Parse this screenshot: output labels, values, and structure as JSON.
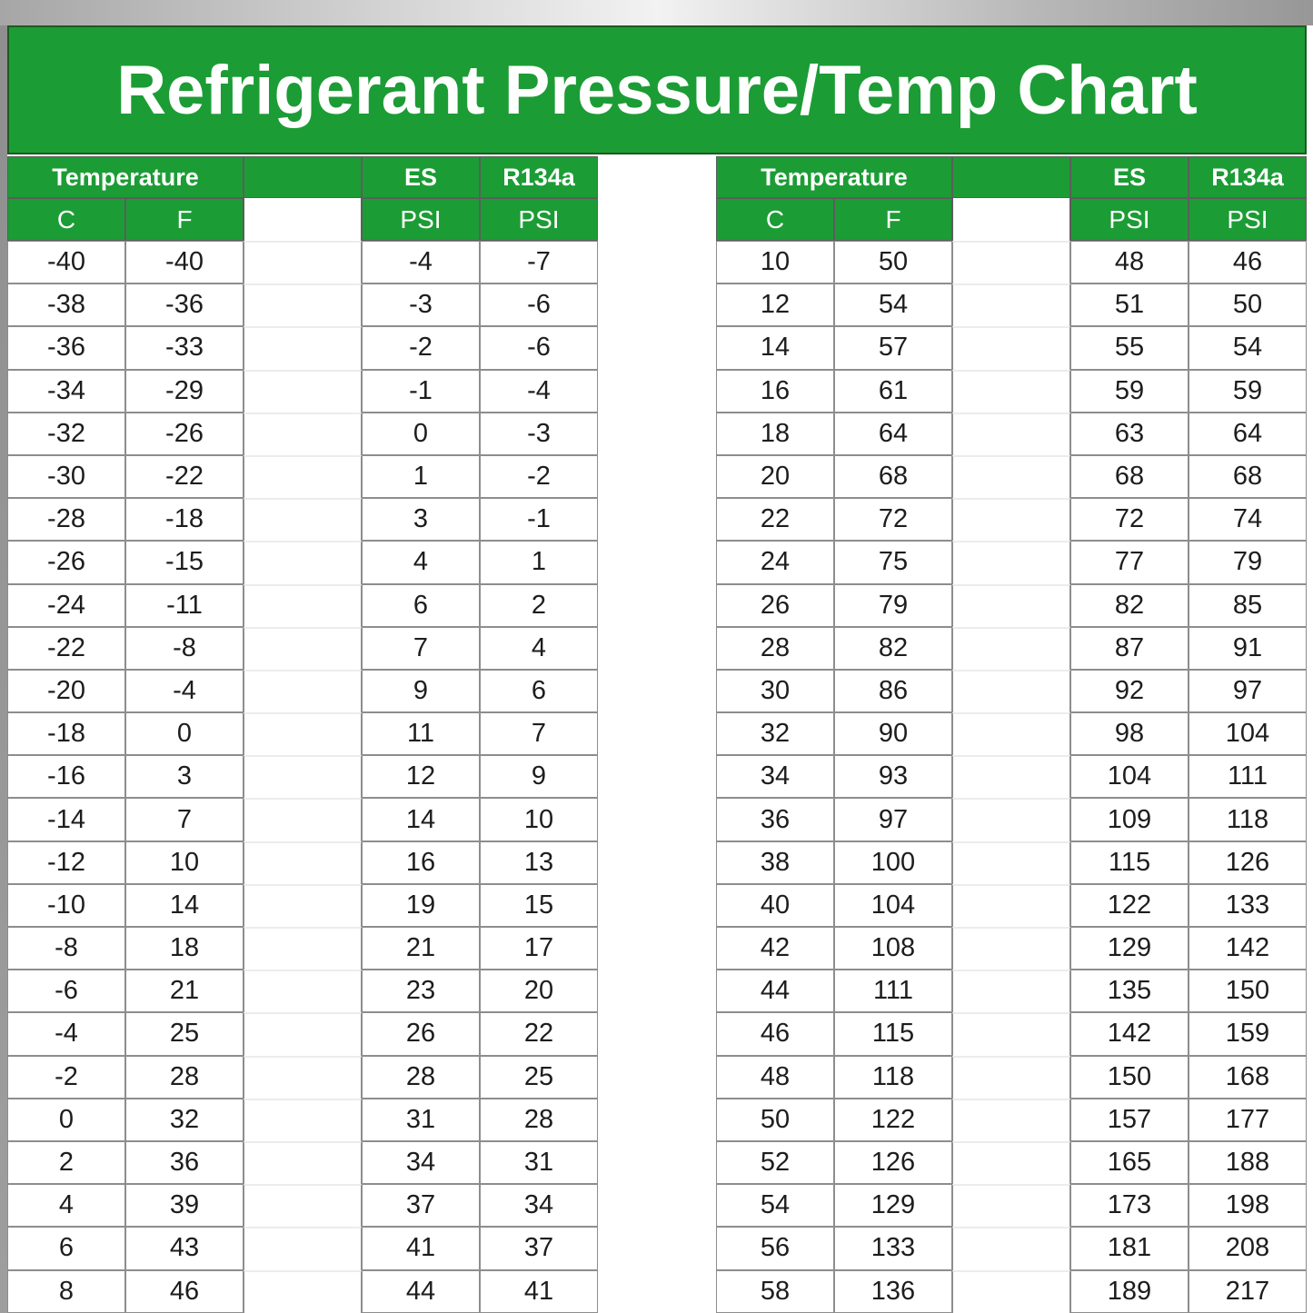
{
  "title": "Refrigerant Pressure/Temp Chart",
  "colors": {
    "header_green": "#1c9c35",
    "banner_edge": "#1c5a22",
    "cell_border_dark": "#8d8d8d",
    "cell_border_light": "#ececec",
    "text_dark": "#1d1d1d",
    "side_strip_gray": "#9a9a9a",
    "top_band_gray": "#a6a6a6"
  },
  "table": {
    "group_headers": {
      "temperature": "Temperature",
      "es": "ES",
      "r134a": "R134a"
    },
    "unit_headers": {
      "c": "C",
      "f": "F",
      "psi": "PSI"
    },
    "column_order": [
      "C",
      "F",
      "",
      "ES PSI",
      "R134a PSI"
    ],
    "left_rows": [
      [
        "-40",
        "-40",
        "-4",
        "-7"
      ],
      [
        "-38",
        "-36",
        "-3",
        "-6"
      ],
      [
        "-36",
        "-33",
        "-2",
        "-6"
      ],
      [
        "-34",
        "-29",
        "-1",
        "-4"
      ],
      [
        "-32",
        "-26",
        "0",
        "-3"
      ],
      [
        "-30",
        "-22",
        "1",
        "-2"
      ],
      [
        "-28",
        "-18",
        "3",
        "-1"
      ],
      [
        "-26",
        "-15",
        "4",
        "1"
      ],
      [
        "-24",
        "-11",
        "6",
        "2"
      ],
      [
        "-22",
        "-8",
        "7",
        "4"
      ],
      [
        "-20",
        "-4",
        "9",
        "6"
      ],
      [
        "-18",
        "0",
        "11",
        "7"
      ],
      [
        "-16",
        "3",
        "12",
        "9"
      ],
      [
        "-14",
        "7",
        "14",
        "10"
      ],
      [
        "-12",
        "10",
        "16",
        "13"
      ],
      [
        "-10",
        "14",
        "19",
        "15"
      ],
      [
        "-8",
        "18",
        "21",
        "17"
      ],
      [
        "-6",
        "21",
        "23",
        "20"
      ],
      [
        "-4",
        "25",
        "26",
        "22"
      ],
      [
        "-2",
        "28",
        "28",
        "25"
      ],
      [
        "0",
        "32",
        "31",
        "28"
      ],
      [
        "2",
        "36",
        "34",
        "31"
      ],
      [
        "4",
        "39",
        "37",
        "34"
      ],
      [
        "6",
        "43",
        "41",
        "37"
      ],
      [
        "8",
        "46",
        "44",
        "41"
      ]
    ],
    "right_rows": [
      [
        "10",
        "50",
        "48",
        "46"
      ],
      [
        "12",
        "54",
        "51",
        "50"
      ],
      [
        "14",
        "57",
        "55",
        "54"
      ],
      [
        "16",
        "61",
        "59",
        "59"
      ],
      [
        "18",
        "64",
        "63",
        "64"
      ],
      [
        "20",
        "68",
        "68",
        "68"
      ],
      [
        "22",
        "72",
        "72",
        "74"
      ],
      [
        "24",
        "75",
        "77",
        "79"
      ],
      [
        "26",
        "79",
        "82",
        "85"
      ],
      [
        "28",
        "82",
        "87",
        "91"
      ],
      [
        "30",
        "86",
        "92",
        "97"
      ],
      [
        "32",
        "90",
        "98",
        "104"
      ],
      [
        "34",
        "93",
        "104",
        "111"
      ],
      [
        "36",
        "97",
        "109",
        "118"
      ],
      [
        "38",
        "100",
        "115",
        "126"
      ],
      [
        "40",
        "104",
        "122",
        "133"
      ],
      [
        "42",
        "108",
        "129",
        "142"
      ],
      [
        "44",
        "111",
        "135",
        "150"
      ],
      [
        "46",
        "115",
        "142",
        "159"
      ],
      [
        "48",
        "118",
        "150",
        "168"
      ],
      [
        "50",
        "122",
        "157",
        "177"
      ],
      [
        "52",
        "126",
        "165",
        "188"
      ],
      [
        "54",
        "129",
        "173",
        "198"
      ],
      [
        "56",
        "133",
        "181",
        "208"
      ],
      [
        "58",
        "136",
        "189",
        "217"
      ]
    ]
  }
}
